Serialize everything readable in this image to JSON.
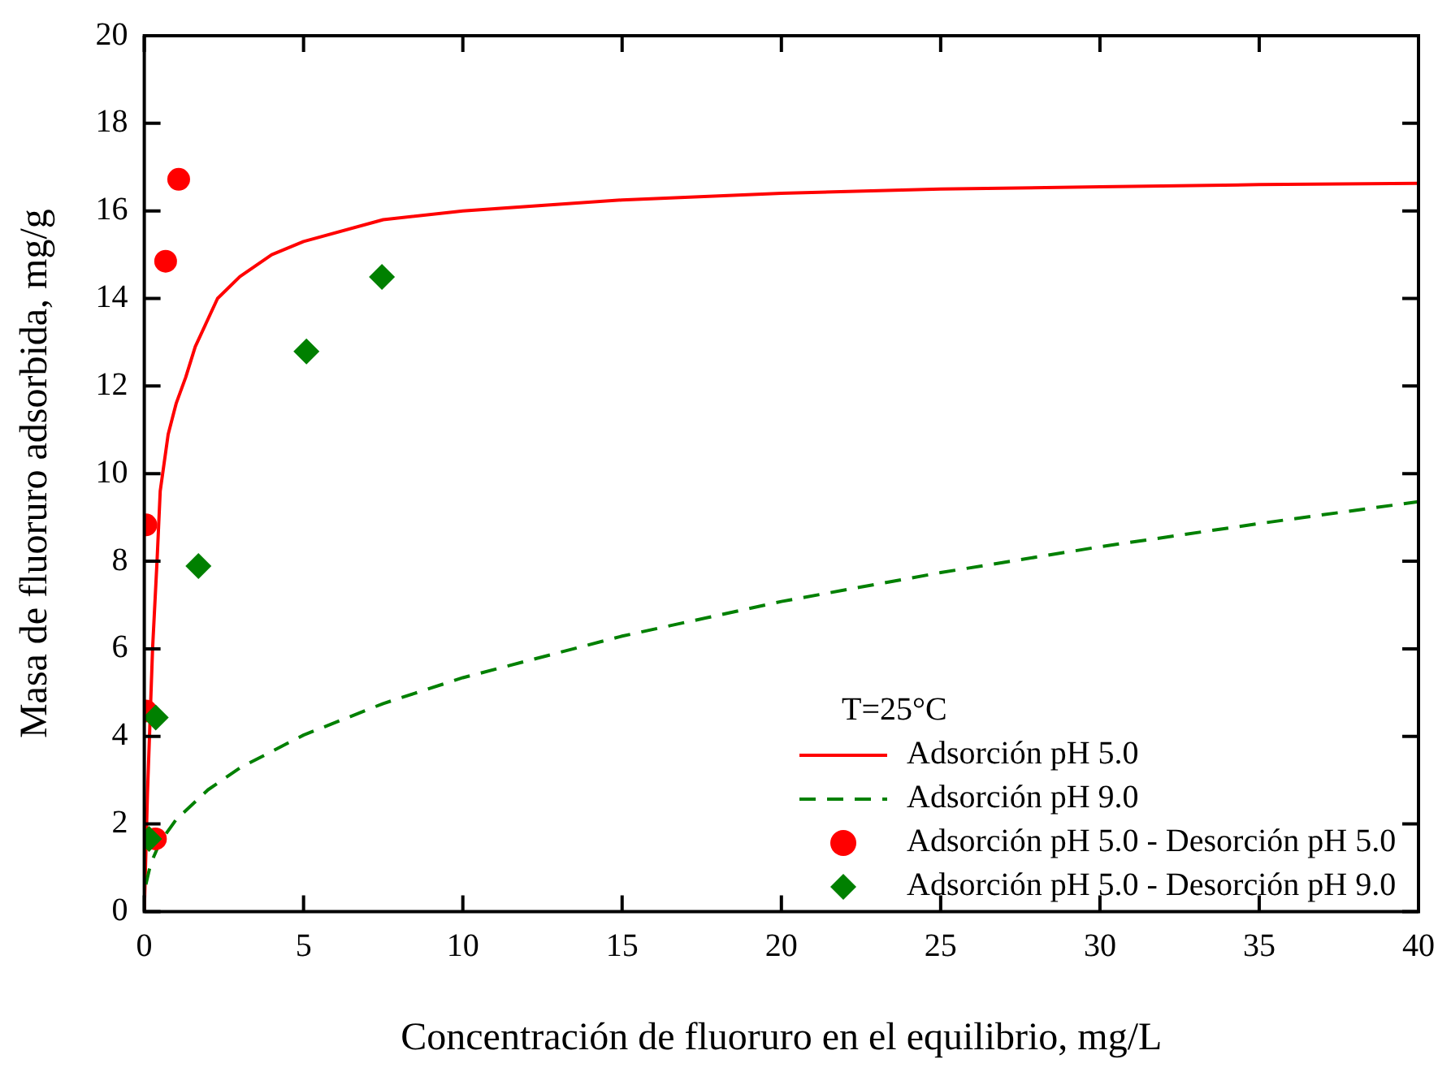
{
  "chart_data": {
    "type": "scatter",
    "xlabel": "Concentración de fluoruro en el equilibrio, mg/L",
    "ylabel": "Masa de fluoruro adsorbida, mg/g",
    "legend_title": "T=25°C",
    "legend": "bottom right",
    "grid": false,
    "xlim": [
      0,
      40
    ],
    "xticks": [
      0,
      5,
      10,
      15,
      20,
      25,
      30,
      35,
      40
    ],
    "ylim": [
      0,
      20
    ],
    "yticks": [
      0,
      2,
      4,
      6,
      8,
      10,
      12,
      14,
      16,
      18,
      20
    ],
    "series": [
      {
        "name": "Adsorción pH 5.0",
        "type": "line",
        "line_style": "solid",
        "marker": "none",
        "color": "#ff0000",
        "x": [
          0,
          0.1,
          0.26,
          0.4,
          0.5,
          0.75,
          1,
          1.3,
          1.6,
          2.3,
          3,
          4,
          5,
          7.5,
          10,
          15,
          20,
          25,
          30,
          35,
          40
        ],
        "values": [
          0,
          2.7,
          6,
          8,
          9.6,
          10.9,
          11.6,
          12.2,
          12.9,
          14,
          14.5,
          15,
          15.3,
          15.8,
          16,
          16.25,
          16.4,
          16.5,
          16.55,
          16.6,
          16.63
        ]
      },
      {
        "name": "Adsorción pH 9.0",
        "type": "line",
        "line_style": "dashed",
        "marker": "none",
        "color": "#008000",
        "x": [
          0.05,
          0.2,
          0.5,
          1,
          2,
          3,
          5,
          7.5,
          10,
          15,
          20,
          25,
          30,
          35,
          40
        ],
        "values": [
          0.62,
          1.09,
          1.59,
          2.1,
          2.78,
          3.28,
          4.03,
          4.75,
          5.34,
          6.29,
          7.08,
          7.74,
          8.33,
          8.86,
          9.36
        ]
      },
      {
        "name": "Adsorción pH 5.0 - Desorción pH 5.0",
        "type": "scatter",
        "marker": "circle",
        "color": "#ff0000",
        "x": [
          0.35,
          0.05,
          0.05,
          0.67,
          1.08
        ],
        "values": [
          1.66,
          4.58,
          8.83,
          14.85,
          16.72
        ]
      },
      {
        "name": "Adsorción pH 5.0 - Desorción pH 9.0",
        "type": "scatter",
        "marker": "diamond",
        "color": "#008000",
        "x": [
          0.15,
          0.36,
          1.7,
          5.09,
          7.46
        ],
        "values": [
          1.66,
          4.43,
          7.89,
          12.79,
          14.49
        ]
      }
    ]
  }
}
